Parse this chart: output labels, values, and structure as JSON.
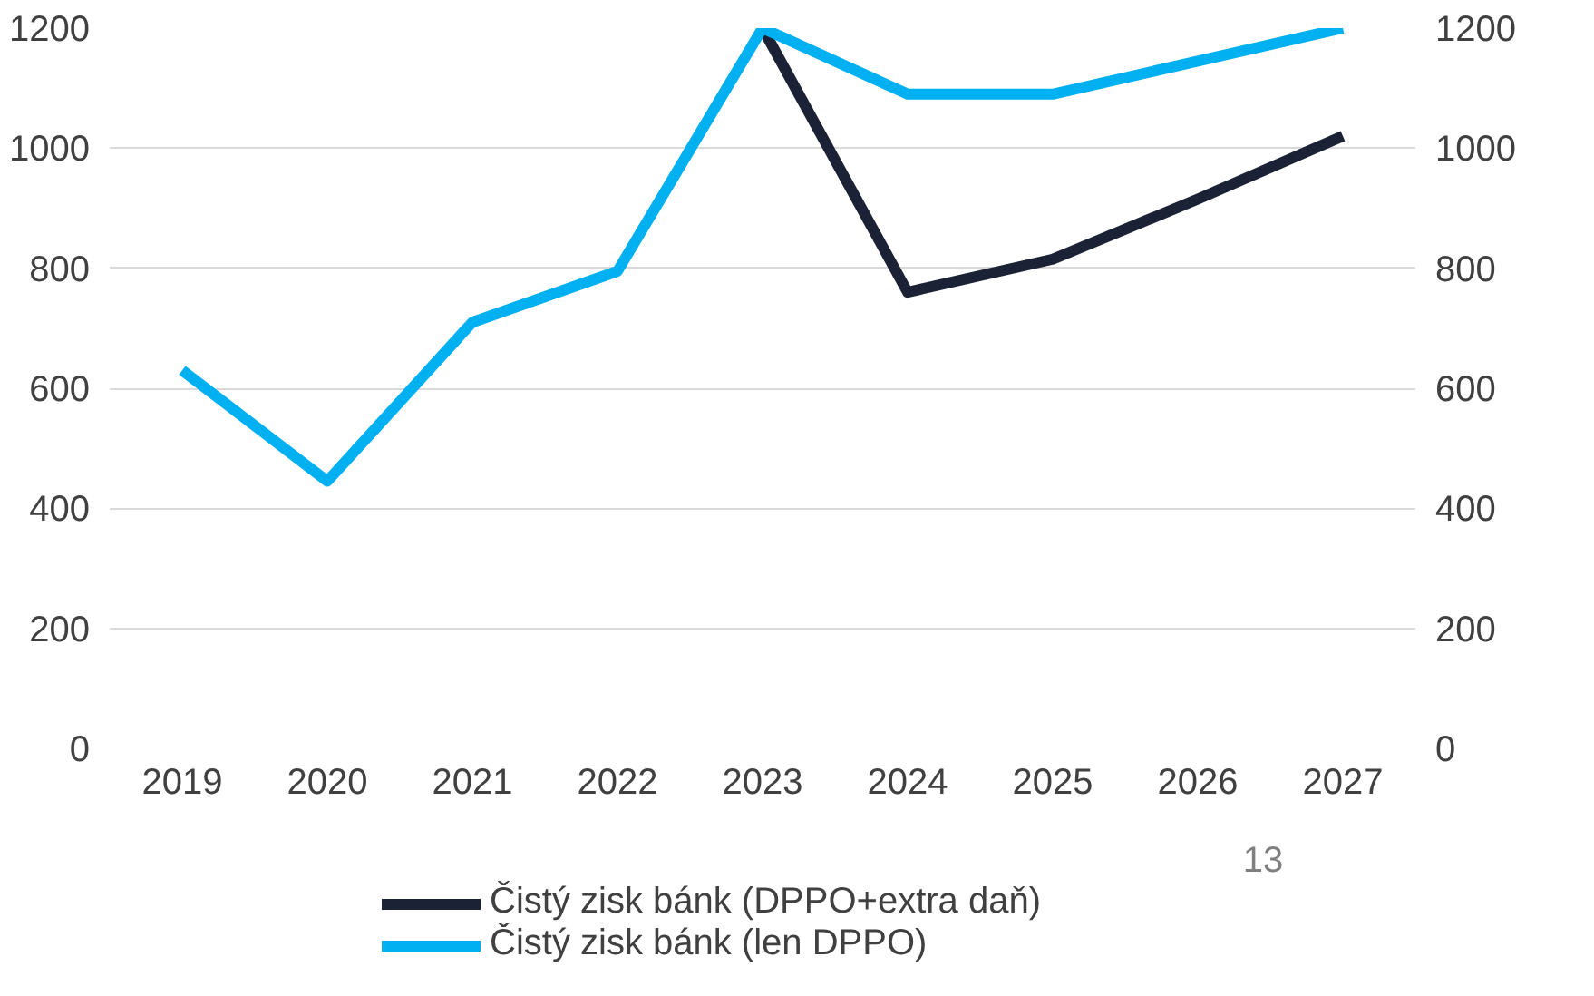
{
  "chart_data": {
    "type": "line",
    "categories": [
      "2019",
      "2020",
      "2021",
      "2022",
      "2023",
      "2024",
      "2025",
      "2026",
      "2027"
    ],
    "series": [
      {
        "name": "Čistý zisk bánk (DPPO+extra daň)",
        "color": "#1b2236",
        "values": [
          null,
          null,
          null,
          null,
          1200,
          760,
          815,
          915,
          1020
        ]
      },
      {
        "name": "Čistý zisk bánk (len DPPO)",
        "color": "#00b0f0",
        "values": [
          630,
          445,
          710,
          795,
          1200,
          1090,
          1090,
          1145,
          1200
        ]
      }
    ],
    "ylim": [
      0,
      1200
    ],
    "yticks": [
      0,
      200,
      400,
      600,
      800,
      1000,
      1200
    ],
    "y2lim": [
      0,
      1200
    ],
    "y2ticks": [
      0,
      200,
      400,
      600,
      800,
      1000,
      1200
    ],
    "grid": "y",
    "legend": "bottom",
    "marker": "none",
    "line_style": "solid",
    "annotations": [
      "13"
    ]
  }
}
